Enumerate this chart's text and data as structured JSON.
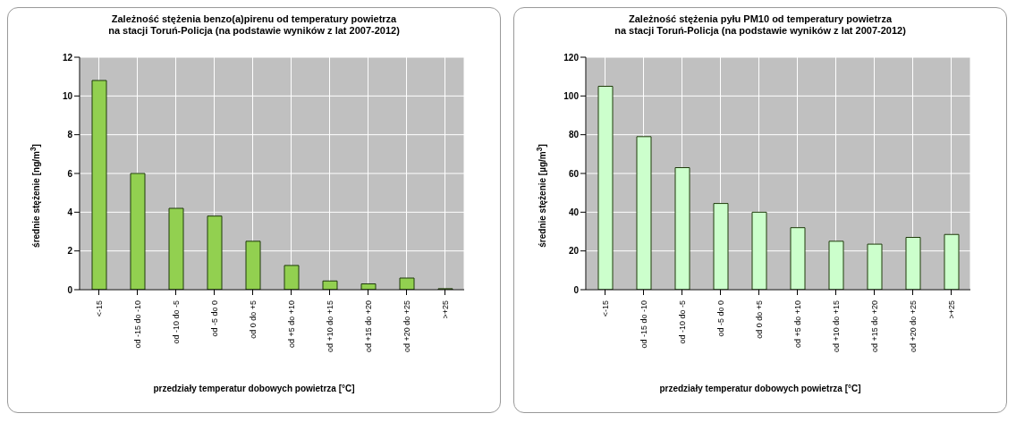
{
  "chart_data": [
    {
      "type": "bar",
      "title": "Zależność stężenia benzo(a)pirenu od temperatury powietrza\nna stacji Toruń-Policja (na podstawie wyników z lat 2007-2012)",
      "xlabel": "przedziały temperatur dobowych powietrza [°C]",
      "ylabel": "średnie stężenie [ng/m$^{3}$]",
      "categories": [
        "<-15",
        "od -15 do -10",
        "od -10 do -5",
        "od -5 do 0",
        "od 0 do +5",
        "od +5 do +10",
        "od +10 do +15",
        "od +15 do +20",
        "od +20 do +25",
        ">+25"
      ],
      "values": [
        10.8,
        6.0,
        4.2,
        3.8,
        2.5,
        1.25,
        0.45,
        0.3,
        0.6,
        0.05
      ],
      "color": "#92d050",
      "ylim": [
        0,
        12
      ],
      "yticks": [
        0,
        2,
        4,
        6,
        8,
        10,
        12
      ],
      "grid": true
    },
    {
      "type": "bar",
      "title": "Zależność stężenia pyłu PM10 od temperatury powietrza\nna stacji Toruń-Policja (na podstawie wyników z lat 2007-2012)",
      "xlabel": "przedziały temperatur dobowych powietrza [°C]",
      "ylabel": "średnie stężenie [µg/m$^{3}$]",
      "categories": [
        "<-15",
        "od -15 do -10",
        "od -10 do -5",
        "od -5 do 0",
        "od 0 do +5",
        "od +5 do +10",
        "od +10 do +15",
        "od +15 do +20",
        "od +20 do +25",
        ">+25"
      ],
      "values": [
        105,
        79,
        63,
        44.5,
        40,
        32,
        25,
        23.5,
        27,
        28.5
      ],
      "color": "#ccffcc",
      "ylim": [
        0,
        120
      ],
      "yticks": [
        0,
        20,
        40,
        60,
        80,
        100,
        120
      ],
      "grid": true
    }
  ]
}
